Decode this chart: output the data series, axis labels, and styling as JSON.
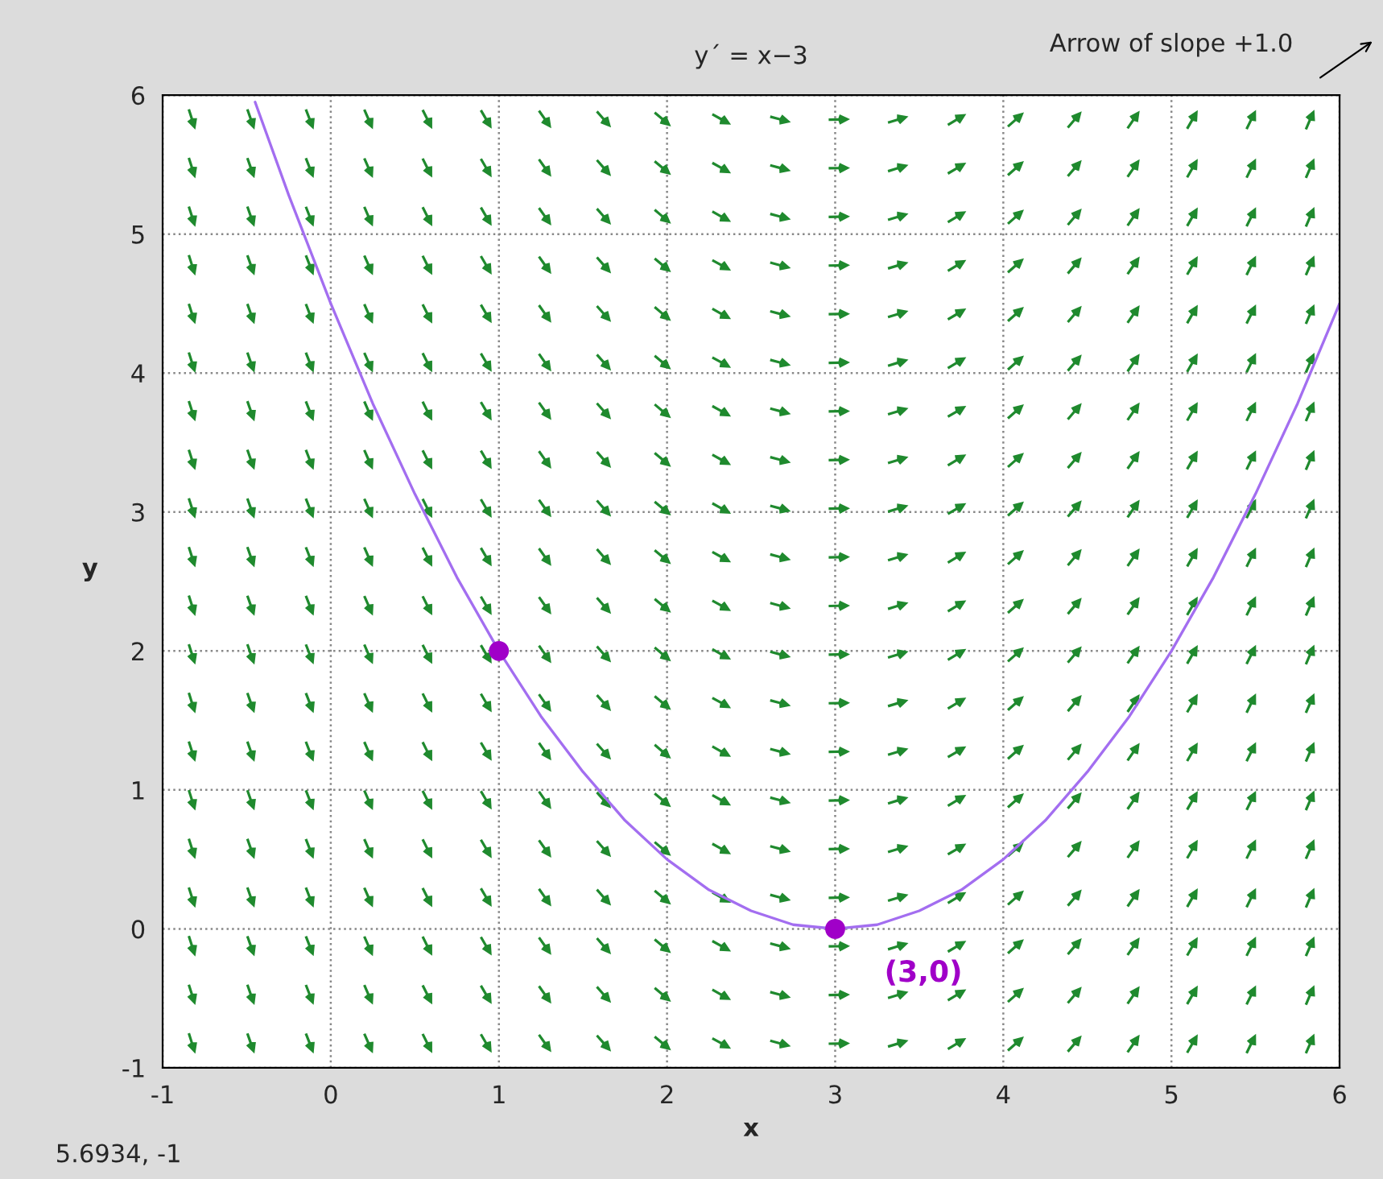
{
  "chart_data": {
    "type": "line",
    "title": "y´ = x−3",
    "xlabel": "x",
    "ylabel": "y",
    "xlim": [
      -1,
      6
    ],
    "ylim": [
      -1,
      6
    ],
    "xticks": [
      -1,
      0,
      1,
      2,
      3,
      4,
      5,
      6
    ],
    "yticks": [
      -1,
      0,
      1,
      2,
      3,
      4,
      5,
      6
    ],
    "grid": true,
    "series": [
      {
        "color": "#a36ef0",
        "x": [
          -0.45,
          -0.25,
          0,
          0.25,
          0.5,
          0.75,
          1,
          1.25,
          1.5,
          1.75,
          2,
          2.25,
          2.5,
          2.75,
          3,
          3.25,
          3.5,
          3.75,
          4,
          4.25,
          4.5,
          4.75,
          5,
          5.25,
          5.5,
          5.75,
          6
        ],
        "values": [
          5.95,
          5.28,
          4.5,
          3.78,
          3.13,
          2.53,
          2,
          1.53,
          1.13,
          0.78,
          0.5,
          0.28,
          0.13,
          0.03,
          0,
          0.03,
          0.13,
          0.28,
          0.5,
          0.78,
          1.13,
          1.53,
          2,
          2.53,
          3.13,
          3.78,
          4.5
        ]
      },
      {
        "type": "scatter",
        "color": "#a000c8",
        "marker": "circle",
        "x": [
          1,
          3
        ],
        "values": [
          2,
          0
        ]
      }
    ],
    "annotations": [
      {
        "text": "(3,0)",
        "x": 3,
        "y": 0
      },
      "Arrow of slope +1.0",
      "5.6934, -1"
    ]
  }
}
